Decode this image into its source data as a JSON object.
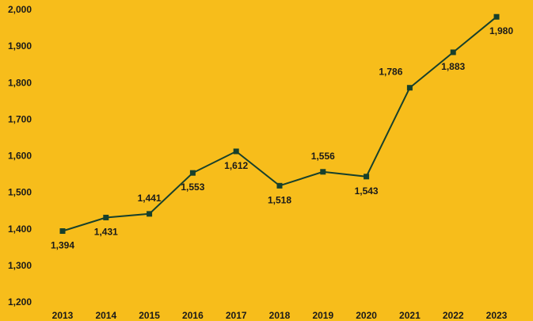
{
  "chart_data": {
    "type": "line",
    "title": "",
    "xlabel": "",
    "ylabel": "",
    "categories": [
      "2013",
      "2014",
      "2015",
      "2016",
      "2017",
      "2018",
      "2019",
      "2020",
      "2021",
      "2022",
      "2023"
    ],
    "series": [
      {
        "values": [
          1394,
          1431,
          1441,
          1553,
          1612,
          1518,
          1556,
          1543,
          1786,
          1883,
          1980
        ],
        "data_labels": [
          "1,394",
          "1,431",
          "1,441",
          "1,553",
          "1,612",
          "1,518",
          "1,556",
          "1,543",
          "1,786",
          "1,883",
          "1,980"
        ],
        "color": "#17402C"
      }
    ],
    "ylim": [
      1200,
      2000
    ],
    "y_ticks": [
      "1,200",
      "1,300",
      "1,400",
      "1,500",
      "1,600",
      "1,700",
      "1,800",
      "1,900",
      "2,000"
    ],
    "grid": false,
    "legend": "none",
    "background": "#F7BD1B"
  }
}
